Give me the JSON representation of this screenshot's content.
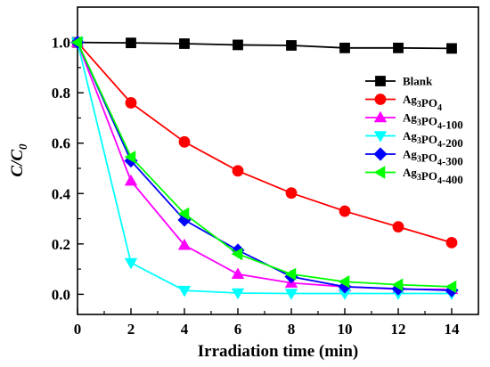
{
  "chart_data": {
    "type": "line",
    "xlabel": "Irradiation time (min)",
    "ylabel": {
      "main": "C/C",
      "sub": "0"
    },
    "xlim": [
      0,
      15
    ],
    "ylim": [
      -0.08,
      1.14
    ],
    "xticks": [
      0,
      2,
      4,
      6,
      8,
      10,
      12,
      14
    ],
    "yticks": [
      0.0,
      0.2,
      0.4,
      0.6,
      0.8,
      1.0
    ],
    "ytick_labels": [
      "0.0",
      "0.2",
      "0.4",
      "0.6",
      "0.8",
      "1.0"
    ],
    "legend_position": "right",
    "x": [
      0,
      2,
      4,
      6,
      8,
      10,
      12,
      14
    ],
    "series": [
      {
        "name": "Blank",
        "label_parts": [
          [
            "Blank",
            0
          ]
        ],
        "color": "#000000",
        "marker": "square",
        "values": [
          1.0,
          0.998,
          0.995,
          0.99,
          0.988,
          0.978,
          0.978,
          0.976
        ]
      },
      {
        "name": "Ag3PO4",
        "label_parts": [
          [
            "Ag",
            0
          ],
          [
            "3",
            1
          ],
          [
            "PO",
            0
          ],
          [
            "4",
            1
          ]
        ],
        "color": "#ff0000",
        "marker": "circle",
        "values": [
          1.0,
          0.76,
          0.605,
          0.49,
          0.402,
          0.33,
          0.268,
          0.205
        ]
      },
      {
        "name": "Ag3PO4-100",
        "label_parts": [
          [
            "Ag",
            0
          ],
          [
            "3",
            1
          ],
          [
            "PO",
            0
          ],
          [
            "4",
            1
          ],
          [
            "-100",
            0
          ]
        ],
        "color": "#ff00ff",
        "marker": "triangle-up",
        "values": [
          1.0,
          0.45,
          0.195,
          0.08,
          0.045,
          0.03,
          0.02,
          0.02
        ]
      },
      {
        "name": "Ag3PO4-200",
        "label_parts": [
          [
            "Ag",
            0
          ],
          [
            "3",
            1
          ],
          [
            "PO",
            0
          ],
          [
            "4",
            1
          ],
          [
            "-200",
            0
          ]
        ],
        "color": "#00ffff",
        "marker": "triangle-down",
        "values": [
          1.0,
          0.125,
          0.015,
          0.005,
          0.003,
          0.003,
          0.003,
          0.003
        ]
      },
      {
        "name": "Ag3PO4-300",
        "label_parts": [
          [
            "Ag",
            0
          ],
          [
            "3",
            1
          ],
          [
            "PO",
            0
          ],
          [
            "4",
            1
          ],
          [
            "-300",
            0
          ]
        ],
        "color": "#0000ff",
        "marker": "diamond",
        "values": [
          1.0,
          0.53,
          0.295,
          0.175,
          0.07,
          0.03,
          0.022,
          0.015
        ]
      },
      {
        "name": "Ag3PO4-400",
        "label_parts": [
          [
            "Ag",
            0
          ],
          [
            "3",
            1
          ],
          [
            "PO",
            0
          ],
          [
            "4",
            1
          ],
          [
            "-400",
            0
          ]
        ],
        "color": "#00ff00",
        "marker": "triangle-left",
        "values": [
          1.0,
          0.545,
          0.32,
          0.16,
          0.08,
          0.05,
          0.038,
          0.03
        ]
      }
    ]
  }
}
